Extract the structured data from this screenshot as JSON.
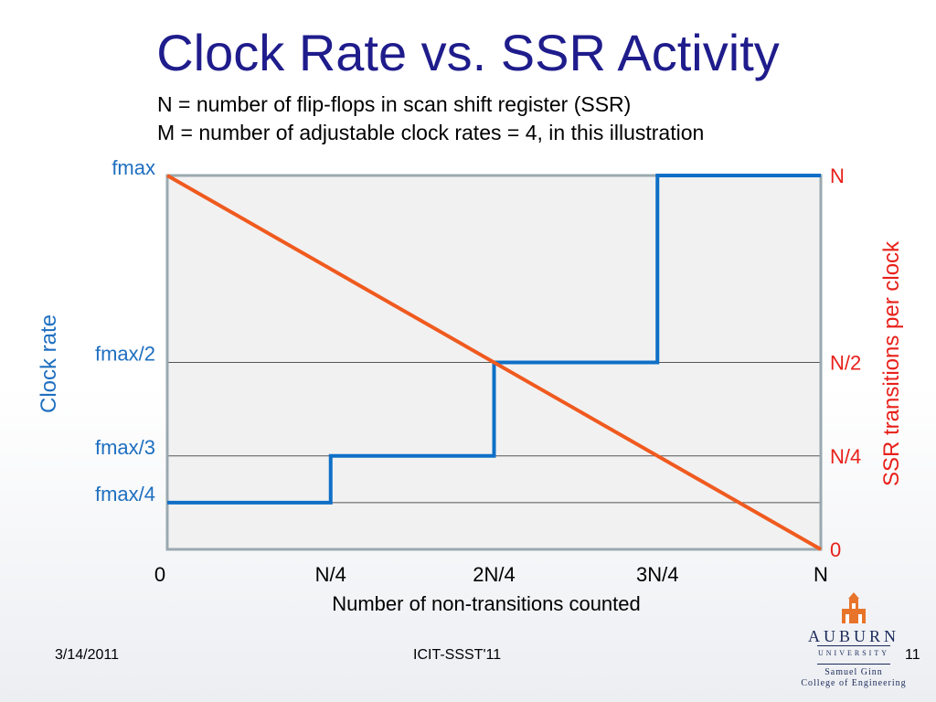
{
  "slide": {
    "title": "Clock Rate vs. SSR Activity",
    "subtitle_lines": [
      "N = number of flip-flops in scan shift register (SSR)",
      "M = number of adjustable clock rates = 4, in this illustration"
    ],
    "footer": {
      "date": "3/14/2011",
      "conference": "ICIT-SSST'11",
      "page": "11"
    },
    "logo": {
      "name": "AUBURN",
      "sub": "UNIVERSITY",
      "college_line1": "Samuel Ginn",
      "college_line2": "College of Engineering",
      "icon": "auburn-tower-icon"
    }
  },
  "chart_data": {
    "type": "line",
    "xlabel": "Number of non-transitions counted",
    "ylabel_left": "Clock rate",
    "ylabel_right": "SSR transitions per clock",
    "x_ticks": [
      "0",
      "N/4",
      "2N/4",
      "3N/4",
      "N"
    ],
    "x_range": [
      0,
      1
    ],
    "left_ticks": [
      {
        "label": "fmax",
        "value": 1.0
      },
      {
        "label": "fmax/2",
        "value": 0.5
      },
      {
        "label": "fmax/3",
        "value": 0.25
      },
      {
        "label": "fmax/4",
        "value": 0.125
      }
    ],
    "right_ticks": [
      {
        "label": "N",
        "value": 1.0
      },
      {
        "label": "N/2",
        "value": 0.5
      },
      {
        "label": "N/4",
        "value": 0.25
      },
      {
        "label": "0",
        "value": 0.0
      }
    ],
    "grid_levels": [
      0.5,
      0.25,
      0.125
    ],
    "series": [
      {
        "color": "#0f6fc6",
        "kind": "step",
        "points": [
          [
            0,
            0.125
          ],
          [
            0.25,
            0.125
          ],
          [
            0.25,
            0.25
          ],
          [
            0.5,
            0.25
          ],
          [
            0.5,
            0.5
          ],
          [
            0.75,
            0.5
          ],
          [
            0.75,
            1.0
          ],
          [
            1.0,
            1.0
          ]
        ]
      },
      {
        "color": "#f05a1f",
        "kind": "line",
        "points": [
          [
            0,
            1.0
          ],
          [
            1.0,
            0.0
          ]
        ]
      }
    ],
    "colors": {
      "left_axis": "#1f6fc0",
      "right_axis": "#e8201a",
      "frame": "#9aa9b0",
      "grid": "#555555"
    }
  }
}
